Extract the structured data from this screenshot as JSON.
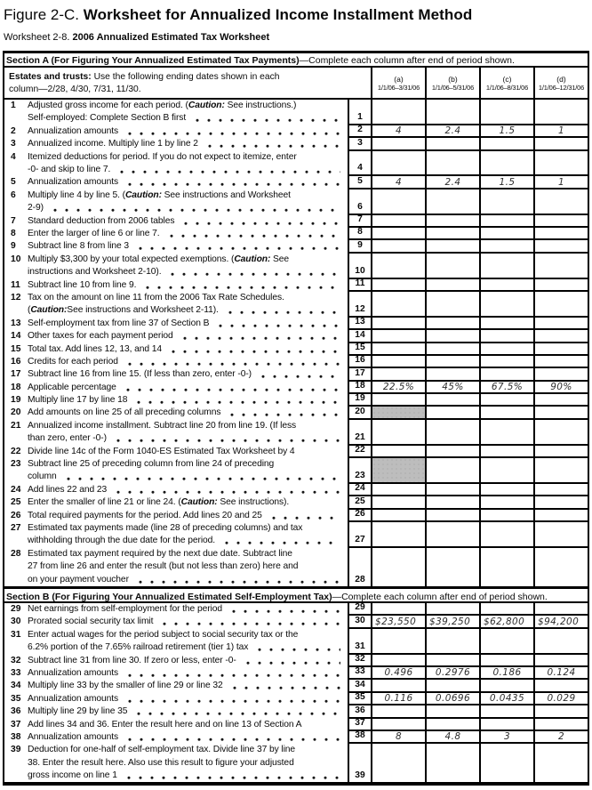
{
  "title": {
    "prefix": "Figure 2-C.",
    "main": "Worksheet for Annualized Income Installment Method"
  },
  "subtitle": {
    "prefix": "Worksheet 2-8.",
    "main": "2006 Annualized Estimated Tax Worksheet"
  },
  "section_a_heading": {
    "bold": "Section A (For Figuring Your Annualized Estimated Tax Payments)",
    "rest": "—Complete each column after end of period shown."
  },
  "section_b_heading": {
    "bold": "Section B (For Figuring Your Annualized Estimated Self-Employment Tax)",
    "rest": "—Complete each column after end of period shown."
  },
  "col_header": {
    "estates_bold": "Estates and trusts:",
    "estates_line1_rest": " Use the following ending dates shown in each",
    "estates_line2": "column—2/28, 4/30, 7/31, 11/30.",
    "columns": [
      {
        "letter": "(a)",
        "period": "1/1/06–3/31/06"
      },
      {
        "letter": "(b)",
        "period": "1/1/06–5/31/06"
      },
      {
        "letter": "(c)",
        "period": "1/1/06–8/31/06"
      },
      {
        "letter": "(d)",
        "period": "1/1/06–12/31/06"
      }
    ]
  },
  "shaded_cell_color": "#bdbdbd",
  "rows_section_a": [
    {
      "n": "1",
      "h": 2,
      "dots": true,
      "lines": [
        [
          [
            "r",
            "Adjusted gross income for each period. ("
          ],
          [
            "bi",
            "Caution:"
          ],
          [
            "r",
            " See instructions.)"
          ]
        ],
        [
          [
            "r",
            "Self-employed: Complete Section B first"
          ]
        ]
      ]
    },
    {
      "n": "2",
      "h": 1,
      "dots": true,
      "vals": [
        "4",
        "2.4",
        "1.5",
        "1"
      ],
      "lines": [
        [
          [
            "r",
            "Annualization amounts"
          ]
        ]
      ]
    },
    {
      "n": "3",
      "h": 1,
      "dots": true,
      "lines": [
        [
          [
            "r",
            "Annualized income. Multiply line 1 by line 2"
          ]
        ]
      ]
    },
    {
      "n": "4",
      "h": 2,
      "dots": true,
      "lines": [
        [
          [
            "r",
            "Itemized deductions for period. If you do not expect to itemize, enter"
          ]
        ],
        [
          [
            "r",
            "-0- and skip to line 7."
          ]
        ]
      ]
    },
    {
      "n": "5",
      "h": 1,
      "dots": true,
      "vals": [
        "4",
        "2.4",
        "1.5",
        "1"
      ],
      "lines": [
        [
          [
            "r",
            "Annualization amounts"
          ]
        ]
      ]
    },
    {
      "n": "6",
      "h": 2,
      "dots": true,
      "lines": [
        [
          [
            "r",
            "Multiply line 4 by line 5. ("
          ],
          [
            "bi",
            "Caution:"
          ],
          [
            "r",
            " See instructions and Worksheet"
          ]
        ],
        [
          [
            "r",
            "2-9)"
          ]
        ]
      ]
    },
    {
      "n": "7",
      "h": 1,
      "dots": true,
      "lines": [
        [
          [
            "r",
            "Standard deduction from 2006 tables"
          ]
        ]
      ]
    },
    {
      "n": "8",
      "h": 1,
      "dots": true,
      "lines": [
        [
          [
            "r",
            "Enter the larger of line 6 or line 7."
          ]
        ]
      ]
    },
    {
      "n": "9",
      "h": 1,
      "dots": true,
      "lines": [
        [
          [
            "r",
            "Subtract line 8 from line 3"
          ]
        ]
      ]
    },
    {
      "n": "10",
      "h": 2,
      "dots": true,
      "lines": [
        [
          [
            "r",
            "Multiply $3,300 by your total expected exemptions. ("
          ],
          [
            "bi",
            "Caution:"
          ],
          [
            "r",
            " See"
          ]
        ],
        [
          [
            "r",
            "instructions and Worksheet 2-10)."
          ]
        ]
      ]
    },
    {
      "n": "11",
      "h": 1,
      "dots": true,
      "lines": [
        [
          [
            "r",
            "Subtract line 10 from line 9."
          ]
        ]
      ]
    },
    {
      "n": "12",
      "h": 2,
      "dots": true,
      "lines": [
        [
          [
            "r",
            "Tax on the amount on line 11 from the 2006 Tax Rate Schedules."
          ]
        ],
        [
          [
            "r",
            "("
          ],
          [
            "bi",
            "Caution:"
          ],
          [
            "r",
            " See instructions and Worksheet 2-11)."
          ]
        ]
      ]
    },
    {
      "n": "13",
      "h": 1,
      "dots": true,
      "lines": [
        [
          [
            "r",
            "Self-employment tax from line 37 of Section B"
          ]
        ]
      ]
    },
    {
      "n": "14",
      "h": 1,
      "dots": true,
      "lines": [
        [
          [
            "r",
            "Other taxes for each payment period"
          ]
        ]
      ]
    },
    {
      "n": "15",
      "h": 1,
      "dots": true,
      "lines": [
        [
          [
            "r",
            "Total tax. Add lines 12, 13, and 14"
          ]
        ]
      ]
    },
    {
      "n": "16",
      "h": 1,
      "dots": true,
      "lines": [
        [
          [
            "r",
            "Credits for each period"
          ]
        ]
      ]
    },
    {
      "n": "17",
      "h": 1,
      "dots": true,
      "lines": [
        [
          [
            "r",
            "Subtract line 16 from line 15. (If less than zero, enter -0-)"
          ]
        ]
      ]
    },
    {
      "n": "18",
      "h": 1,
      "dots": true,
      "vals": [
        "22.5%",
        "45%",
        "67.5%",
        "90%"
      ],
      "lines": [
        [
          [
            "r",
            "Applicable percentage"
          ]
        ]
      ]
    },
    {
      "n": "19",
      "h": 1,
      "dots": true,
      "lines": [
        [
          [
            "r",
            "Multiply line 17 by line 18"
          ]
        ]
      ]
    },
    {
      "n": "20",
      "h": 1,
      "dots": true,
      "shade": [
        0
      ],
      "lines": [
        [
          [
            "r",
            "Add amounts on line 25 of all preceding columns"
          ]
        ]
      ]
    },
    {
      "n": "21",
      "h": 2,
      "dots": true,
      "lines": [
        [
          [
            "r",
            "Annualized income installment. Subtract line 20 from line 19. (If less"
          ]
        ],
        [
          [
            "r",
            "than zero, enter -0-)"
          ]
        ]
      ]
    },
    {
      "n": "22",
      "h": 1,
      "dots": false,
      "lines": [
        [
          [
            "r",
            "Divide line 14c of the Form 1040-ES Estimated Tax Worksheet by 4"
          ]
        ]
      ]
    },
    {
      "n": "23",
      "h": 2,
      "dots": true,
      "shade": [
        0
      ],
      "lines": [
        [
          [
            "r",
            "Subtract line 25 of preceding column from line 24 of preceding"
          ]
        ],
        [
          [
            "r",
            "column"
          ]
        ]
      ]
    },
    {
      "n": "24",
      "h": 1,
      "dots": true,
      "lines": [
        [
          [
            "r",
            "Add lines 22 and 23"
          ]
        ]
      ]
    },
    {
      "n": "25",
      "h": 1,
      "dots": false,
      "lines": [
        [
          [
            "r",
            "Enter the smaller of line 21 or line 24. ("
          ],
          [
            "bi",
            "Caution:"
          ],
          [
            "r",
            " See instructions)."
          ]
        ]
      ]
    },
    {
      "n": "26",
      "h": 1,
      "dots": true,
      "lines": [
        [
          [
            "r",
            "Total required payments for the period. Add lines 20 and 25"
          ]
        ]
      ]
    },
    {
      "n": "27",
      "h": 2,
      "dots": true,
      "lines": [
        [
          [
            "r",
            "Estimated tax payments made (line 28 of preceding columns) and tax"
          ]
        ],
        [
          [
            "r",
            "withholding through the due date for the period."
          ]
        ]
      ]
    },
    {
      "n": "28",
      "h": 3,
      "dots": true,
      "lines": [
        [
          [
            "r",
            "Estimated tax payment required by the next due date. Subtract line"
          ]
        ],
        [
          [
            "r",
            "27 from line 26 and enter the result (but not less than zero) here and"
          ]
        ],
        [
          [
            "r",
            "on your payment voucher"
          ]
        ]
      ]
    }
  ],
  "rows_section_b": [
    {
      "n": "29",
      "h": 1,
      "dots": true,
      "lines": [
        [
          [
            "r",
            "Net earnings from self-employment for the period"
          ]
        ]
      ]
    },
    {
      "n": "30",
      "h": 1,
      "dots": true,
      "align": "left",
      "vals": [
        "$23,550",
        "$39,250",
        "$62,800",
        "$94,200"
      ],
      "lines": [
        [
          [
            "r",
            "Prorated social security tax limit"
          ]
        ]
      ]
    },
    {
      "n": "31",
      "h": 2,
      "dots": true,
      "lines": [
        [
          [
            "r",
            "Enter actual wages for the period subject to social security tax or the"
          ]
        ],
        [
          [
            "r",
            "6.2% portion of the 7.65% railroad retirement (tier 1) tax"
          ]
        ]
      ]
    },
    {
      "n": "32",
      "h": 1,
      "dots": true,
      "lines": [
        [
          [
            "r",
            "Subtract line 31 from line 30. If zero or less, enter -0-"
          ]
        ]
      ]
    },
    {
      "n": "33",
      "h": 1,
      "dots": true,
      "vals": [
        "0.496",
        "0.2976",
        "0.186",
        "0.124"
      ],
      "lines": [
        [
          [
            "r",
            "Annualization amounts"
          ]
        ]
      ]
    },
    {
      "n": "34",
      "h": 1,
      "dots": true,
      "lines": [
        [
          [
            "r",
            "Multiply line 33 by the smaller of line 29 or line 32"
          ]
        ]
      ]
    },
    {
      "n": "35",
      "h": 1,
      "dots": true,
      "vals": [
        "0.116",
        "0.0696",
        "0.0435",
        "0.029"
      ],
      "lines": [
        [
          [
            "r",
            "Annualization amounts"
          ]
        ]
      ]
    },
    {
      "n": "36",
      "h": 1,
      "dots": true,
      "lines": [
        [
          [
            "r",
            "Multiply line 29 by line 35"
          ]
        ]
      ]
    },
    {
      "n": "37",
      "h": 1,
      "dots": false,
      "lines": [
        [
          [
            "r",
            "Add lines 34 and 36. Enter the result here and on line 13 of Section A"
          ]
        ]
      ]
    },
    {
      "n": "38",
      "h": 1,
      "dots": true,
      "vals": [
        "8",
        "4.8",
        "3",
        "2"
      ],
      "lines": [
        [
          [
            "r",
            "Annualization amounts"
          ]
        ]
      ]
    },
    {
      "n": "39",
      "h": 3,
      "dots": true,
      "lines": [
        [
          [
            "r",
            "Deduction for one-half of self-employment tax. Divide line 37 by line"
          ]
        ],
        [
          [
            "r",
            "38. Enter the result here. Also use this result to figure your adjusted"
          ]
        ],
        [
          [
            "r",
            "gross income on line 1"
          ]
        ]
      ]
    }
  ]
}
